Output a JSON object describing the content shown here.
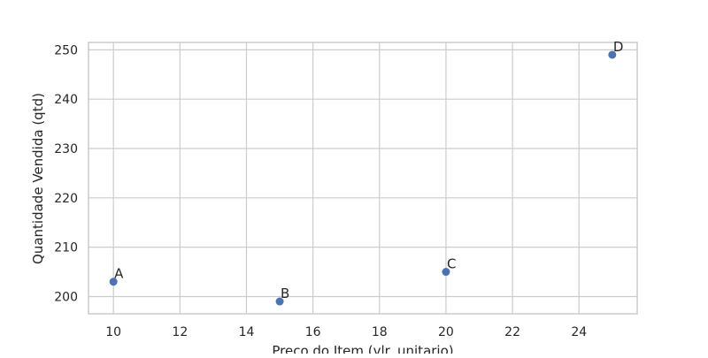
{
  "chart_data": {
    "type": "scatter",
    "xlabel": "Preço do Item (vlr. unitario)",
    "ylabel": "Quantidade Vendida (qtd)",
    "xlim": [
      9.25,
      25.75
    ],
    "ylim": [
      196.5,
      251.5
    ],
    "x_ticks": [
      10,
      12,
      14,
      16,
      18,
      20,
      22,
      24
    ],
    "y_ticks": [
      200,
      210,
      220,
      230,
      240,
      250
    ],
    "grid": true,
    "point_color": "#4c72b0",
    "points": [
      {
        "label": "A",
        "x": 10,
        "y": 203
      },
      {
        "label": "B",
        "x": 15,
        "y": 199
      },
      {
        "label": "C",
        "x": 20,
        "y": 205
      },
      {
        "label": "D",
        "x": 25,
        "y": 249
      }
    ]
  }
}
